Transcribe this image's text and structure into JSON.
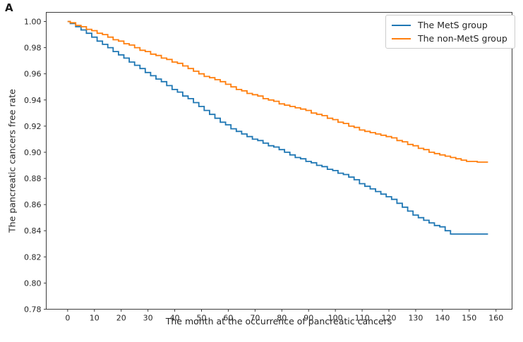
{
  "panel_label": "A",
  "chart_data": {
    "type": "line",
    "step": true,
    "title": "",
    "xlabel": "The month at the occurrence of pancreatic cancers",
    "ylabel": "The pancreatic cancers free rate",
    "xlim": [
      -8,
      166
    ],
    "ylim": [
      0.78,
      1.007
    ],
    "grid": false,
    "legend_position": "upper right",
    "x_ticks": [
      0,
      10,
      20,
      30,
      40,
      50,
      60,
      70,
      80,
      90,
      100,
      110,
      120,
      130,
      140,
      150,
      160
    ],
    "y_ticks": [
      "1.00",
      "0.98",
      "0.96",
      "0.94",
      "0.92",
      "0.90",
      "0.88",
      "0.86",
      "0.84",
      "0.82",
      "0.80",
      "0.78"
    ],
    "axis_color": "#3c3c3c",
    "tick_label_color": "#262626",
    "series": [
      {
        "name": "The MetS group",
        "color": "#1f77b4",
        "points": [
          [
            0,
            1.0
          ],
          [
            1,
            0.9985
          ],
          [
            3,
            0.996
          ],
          [
            5,
            0.9935
          ],
          [
            7,
            0.991
          ],
          [
            9,
            0.988
          ],
          [
            11,
            0.985
          ],
          [
            13,
            0.9825
          ],
          [
            15,
            0.98
          ],
          [
            17,
            0.977
          ],
          [
            19,
            0.9745
          ],
          [
            21,
            0.972
          ],
          [
            23,
            0.969
          ],
          [
            25,
            0.9665
          ],
          [
            27,
            0.964
          ],
          [
            29,
            0.961
          ],
          [
            31,
            0.9585
          ],
          [
            33,
            0.956
          ],
          [
            35,
            0.954
          ],
          [
            37,
            0.951
          ],
          [
            39,
            0.948
          ],
          [
            41,
            0.946
          ],
          [
            43,
            0.943
          ],
          [
            45,
            0.941
          ],
          [
            47,
            0.938
          ],
          [
            49,
            0.935
          ],
          [
            51,
            0.932
          ],
          [
            53,
            0.929
          ],
          [
            55,
            0.926
          ],
          [
            57,
            0.923
          ],
          [
            59,
            0.921
          ],
          [
            61,
            0.918
          ],
          [
            63,
            0.916
          ],
          [
            65,
            0.914
          ],
          [
            67,
            0.912
          ],
          [
            69,
            0.91
          ],
          [
            71,
            0.909
          ],
          [
            73,
            0.907
          ],
          [
            75,
            0.905
          ],
          [
            77,
            0.904
          ],
          [
            79,
            0.902
          ],
          [
            81,
            0.9
          ],
          [
            83,
            0.898
          ],
          [
            85,
            0.896
          ],
          [
            87,
            0.895
          ],
          [
            89,
            0.893
          ],
          [
            91,
            0.892
          ],
          [
            93,
            0.89
          ],
          [
            95,
            0.889
          ],
          [
            97,
            0.887
          ],
          [
            99,
            0.886
          ],
          [
            101,
            0.884
          ],
          [
            103,
            0.883
          ],
          [
            105,
            0.881
          ],
          [
            107,
            0.879
          ],
          [
            109,
            0.876
          ],
          [
            111,
            0.874
          ],
          [
            113,
            0.872
          ],
          [
            115,
            0.87
          ],
          [
            117,
            0.868
          ],
          [
            119,
            0.866
          ],
          [
            121,
            0.864
          ],
          [
            123,
            0.861
          ],
          [
            125,
            0.858
          ],
          [
            127,
            0.855
          ],
          [
            129,
            0.852
          ],
          [
            131,
            0.85
          ],
          [
            133,
            0.848
          ],
          [
            135,
            0.846
          ],
          [
            137,
            0.844
          ],
          [
            139,
            0.843
          ],
          [
            141,
            0.84
          ],
          [
            143,
            0.8375
          ],
          [
            157,
            0.8375
          ]
        ]
      },
      {
        "name": "The non-MetS group",
        "color": "#ff7f0e",
        "points": [
          [
            0,
            1.0
          ],
          [
            1,
            0.999
          ],
          [
            3,
            0.997
          ],
          [
            5,
            0.996
          ],
          [
            7,
            0.994
          ],
          [
            9,
            0.993
          ],
          [
            11,
            0.991
          ],
          [
            13,
            0.99
          ],
          [
            15,
            0.988
          ],
          [
            17,
            0.986
          ],
          [
            19,
            0.985
          ],
          [
            21,
            0.983
          ],
          [
            23,
            0.982
          ],
          [
            25,
            0.98
          ],
          [
            27,
            0.978
          ],
          [
            29,
            0.977
          ],
          [
            31,
            0.975
          ],
          [
            33,
            0.974
          ],
          [
            35,
            0.972
          ],
          [
            37,
            0.971
          ],
          [
            39,
            0.969
          ],
          [
            41,
            0.968
          ],
          [
            43,
            0.966
          ],
          [
            45,
            0.964
          ],
          [
            47,
            0.962
          ],
          [
            49,
            0.96
          ],
          [
            51,
            0.958
          ],
          [
            53,
            0.957
          ],
          [
            55,
            0.9555
          ],
          [
            57,
            0.954
          ],
          [
            59,
            0.952
          ],
          [
            61,
            0.95
          ],
          [
            63,
            0.948
          ],
          [
            65,
            0.947
          ],
          [
            67,
            0.945
          ],
          [
            69,
            0.944
          ],
          [
            71,
            0.943
          ],
          [
            73,
            0.941
          ],
          [
            75,
            0.94
          ],
          [
            77,
            0.939
          ],
          [
            79,
            0.937
          ],
          [
            81,
            0.936
          ],
          [
            83,
            0.935
          ],
          [
            85,
            0.934
          ],
          [
            87,
            0.933
          ],
          [
            89,
            0.932
          ],
          [
            91,
            0.93
          ],
          [
            93,
            0.929
          ],
          [
            95,
            0.928
          ],
          [
            97,
            0.926
          ],
          [
            99,
            0.925
          ],
          [
            101,
            0.923
          ],
          [
            103,
            0.922
          ],
          [
            105,
            0.92
          ],
          [
            107,
            0.919
          ],
          [
            109,
            0.917
          ],
          [
            111,
            0.916
          ],
          [
            113,
            0.915
          ],
          [
            115,
            0.914
          ],
          [
            117,
            0.913
          ],
          [
            119,
            0.912
          ],
          [
            121,
            0.911
          ],
          [
            123,
            0.909
          ],
          [
            125,
            0.908
          ],
          [
            127,
            0.906
          ],
          [
            129,
            0.905
          ],
          [
            131,
            0.903
          ],
          [
            133,
            0.902
          ],
          [
            135,
            0.9
          ],
          [
            137,
            0.899
          ],
          [
            139,
            0.898
          ],
          [
            141,
            0.897
          ],
          [
            143,
            0.896
          ],
          [
            145,
            0.895
          ],
          [
            147,
            0.894
          ],
          [
            149,
            0.893
          ],
          [
            151,
            0.893
          ],
          [
            153,
            0.8925
          ],
          [
            157,
            0.8925
          ]
        ]
      }
    ]
  }
}
